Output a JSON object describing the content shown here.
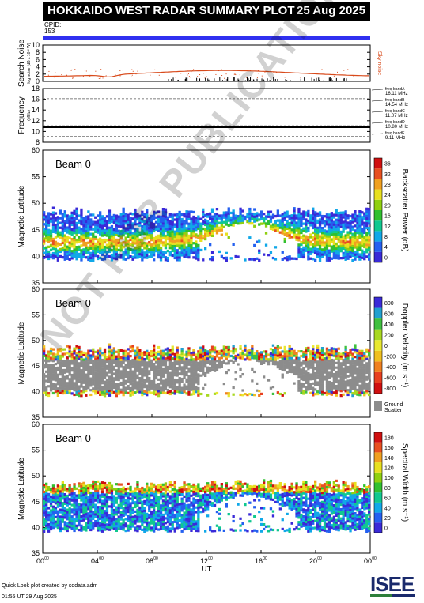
{
  "header": {
    "title": "HOKKAIDO WEST RADAR SUMMARY PLOT",
    "date": "25 Aug 2025"
  },
  "cpid": {
    "label": "CPID:",
    "value": "153"
  },
  "chart_data": [
    {
      "type": "line",
      "panel": "search-noise",
      "ylabel": "Search Noise",
      "ylabel_sub": "log noise (dB x 10¹² W)",
      "ylim": [
        0,
        10
      ],
      "yticks": [
        "0",
        "2",
        "4",
        "6",
        "8",
        "10"
      ],
      "series_label": "Sky noise",
      "series_color": "#d84a1b"
    },
    {
      "type": "line",
      "panel": "frequency",
      "ylabel": "Frequency",
      "ylabel_sub": "(MHz)",
      "ylim": [
        8,
        18
      ],
      "yticks": [
        "8",
        "10",
        "12",
        "14",
        "16",
        "18"
      ],
      "bands": [
        {
          "name": "freq bandA",
          "value": "16.11 MHz"
        },
        {
          "name": "freq bandB",
          "value": "14.54 MHz"
        },
        {
          "name": "freq bandC",
          "value": "11.07 MHz"
        },
        {
          "name": "freq bandD",
          "value": "10.80 MHz"
        },
        {
          "name": "freq bandE",
          "value": "9.11 MHz"
        }
      ]
    },
    {
      "type": "heatmap",
      "panel": "power",
      "label": "Beam  0",
      "ylabel": "Magnetic Latitude",
      "ylim": [
        35,
        60
      ],
      "yticks": [
        "35",
        "40",
        "45",
        "50",
        "55",
        "60"
      ],
      "colorbar_label": "Backscatter Power (dB)",
      "colorbar_ticks": [
        "0",
        "4",
        "8",
        "12",
        "16",
        "20",
        "24",
        "28",
        "32",
        "36"
      ],
      "colors": [
        "#3a2ad8",
        "#2460f0",
        "#10a8e8",
        "#10c890",
        "#30c030",
        "#90d010",
        "#e8e020",
        "#f0a020",
        "#e85020",
        "#d01010"
      ]
    },
    {
      "type": "heatmap",
      "panel": "velocity",
      "label": "Beam  0",
      "ylabel": "Magnetic Latitude",
      "ylim": [
        35,
        60
      ],
      "yticks": [
        "35",
        "40",
        "45",
        "50",
        "55",
        "60"
      ],
      "colorbar_label": "Doppler Velocity (m s⁻¹)",
      "colorbar_ticks": [
        "-800",
        "-600",
        "-400",
        "-200",
        "0",
        "200",
        "400",
        "600",
        "800"
      ],
      "colors": [
        "#d01010",
        "#e84020",
        "#f08020",
        "#f0c020",
        "#e8e830",
        "#a8d820",
        "#40c040",
        "#20a0d0",
        "#3a2ad8"
      ],
      "ground_label": "Ground",
      "scatter_label": "Scatter",
      "ground_color": "#8c8c8c"
    },
    {
      "type": "heatmap",
      "panel": "width",
      "label": "Beam  0",
      "ylabel": "Magnetic Latitude",
      "ylim": [
        35,
        60
      ],
      "yticks": [
        "35",
        "40",
        "45",
        "50",
        "55",
        "60"
      ],
      "colorbar_label": "Spectral Width (m s⁻¹)",
      "colorbar_ticks": [
        "0",
        "20",
        "40",
        "60",
        "80",
        "100",
        "120",
        "140",
        "160",
        "180"
      ],
      "colors": [
        "#3a2ad8",
        "#2460f0",
        "#10a8e8",
        "#10c890",
        "#30c030",
        "#90d010",
        "#e8e020",
        "#f0a020",
        "#e85020",
        "#d01010"
      ]
    }
  ],
  "xaxis": {
    "ticks": [
      "00",
      "04",
      "08",
      "12",
      "16",
      "20",
      "00"
    ],
    "tick_sup": "00",
    "label": "UT"
  },
  "footer": {
    "line1": "Quick Look plot created by sddata.adm",
    "line2": "01:55 UT 29 Aug 2025"
  },
  "logo": {
    "text": "ISEE"
  },
  "watermark": {
    "text": "NOT FOR PUBLICATION"
  }
}
